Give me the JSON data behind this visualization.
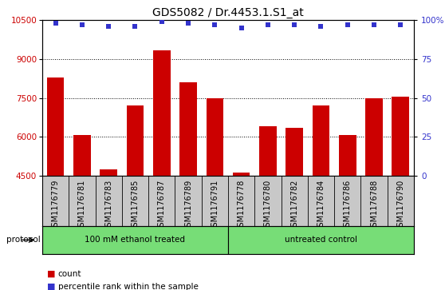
{
  "title": "GDS5082 / Dr.4453.1.S1_at",
  "samples": [
    "GSM1176779",
    "GSM1176781",
    "GSM1176783",
    "GSM1176785",
    "GSM1176787",
    "GSM1176789",
    "GSM1176791",
    "GSM1176778",
    "GSM1176780",
    "GSM1176782",
    "GSM1176784",
    "GSM1176786",
    "GSM1176788",
    "GSM1176790"
  ],
  "counts": [
    8300,
    6050,
    4750,
    7200,
    9350,
    8100,
    7500,
    4600,
    6400,
    6350,
    7200,
    6050,
    7500,
    7550
  ],
  "percentiles": [
    98,
    97,
    96,
    96,
    99,
    98,
    97,
    95,
    97,
    97,
    96,
    97,
    97,
    97
  ],
  "group1_label": "100 mM ethanol treated",
  "group2_label": "untreated control",
  "group1_count": 7,
  "group2_count": 7,
  "group_color": "#77dd77",
  "ylim_left": [
    4500,
    10500
  ],
  "ylim_right": [
    0,
    100
  ],
  "yticks_left": [
    4500,
    6000,
    7500,
    9000,
    10500
  ],
  "yticks_right": [
    0,
    25,
    50,
    75,
    100
  ],
  "yticklabels_right": [
    "0",
    "25",
    "50",
    "75",
    "100%"
  ],
  "bar_color": "#cc0000",
  "dot_color": "#3333cc",
  "bg_color": "#c8c8c8",
  "protocol_label": "protocol",
  "legend_count_label": "count",
  "legend_pct_label": "percentile rank within the sample",
  "title_fontsize": 10,
  "tick_fontsize": 7.5,
  "label_fontsize": 7.0,
  "grid_yticks": [
    6000,
    7500,
    9000
  ]
}
